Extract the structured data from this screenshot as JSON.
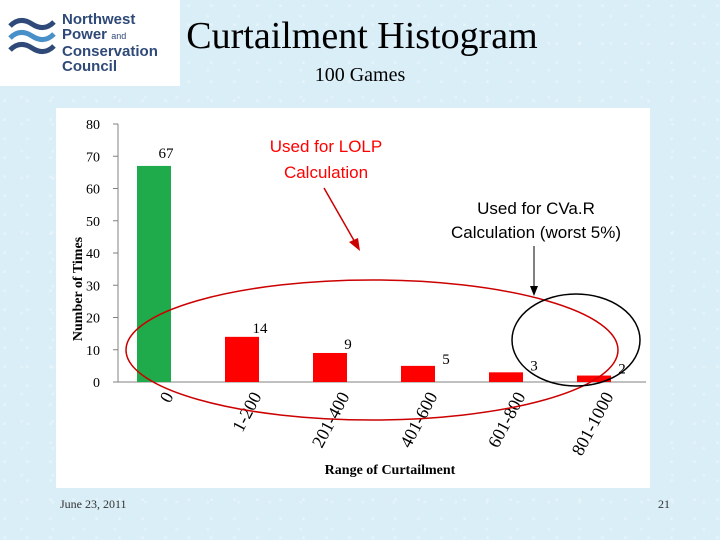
{
  "logo": {
    "line1": "Northwest",
    "line2": "Power",
    "line2_small": "and",
    "line3": "Conservation",
    "line4": "Council",
    "icon": "wave-emblem-icon",
    "color": "#2f4a78"
  },
  "slide": {
    "title": "Curtailment Histogram",
    "subtitle": "100 Games",
    "date": "June 23, 2011",
    "page_number": "21"
  },
  "chart_data": {
    "type": "bar",
    "categories": [
      "0",
      "1-200",
      "201-400",
      "401-600",
      "601-800",
      "801-1000"
    ],
    "values": [
      67,
      14,
      9,
      5,
      3,
      2
    ],
    "data_labels": [
      "67",
      "14",
      "9",
      "5",
      "3",
      "2"
    ],
    "bar_colors": [
      "#1faa4b",
      "#ff0000",
      "#ff0000",
      "#ff0000",
      "#ff0000",
      "#ff0000"
    ],
    "xlabel": "Range of Curtailment",
    "ylabel": "Number of Times",
    "ylim": [
      0,
      80
    ],
    "yticks": [
      0,
      10,
      20,
      30,
      40,
      50,
      60,
      70,
      80
    ],
    "grid": false,
    "annotations": [
      {
        "text_lines": [
          "Used for LOLP",
          "Calculation"
        ],
        "color": "#ff0000"
      },
      {
        "text_lines": [
          "Used for CVa.R",
          "Calculation (worst 5%)"
        ],
        "color": "#000000"
      }
    ]
  }
}
